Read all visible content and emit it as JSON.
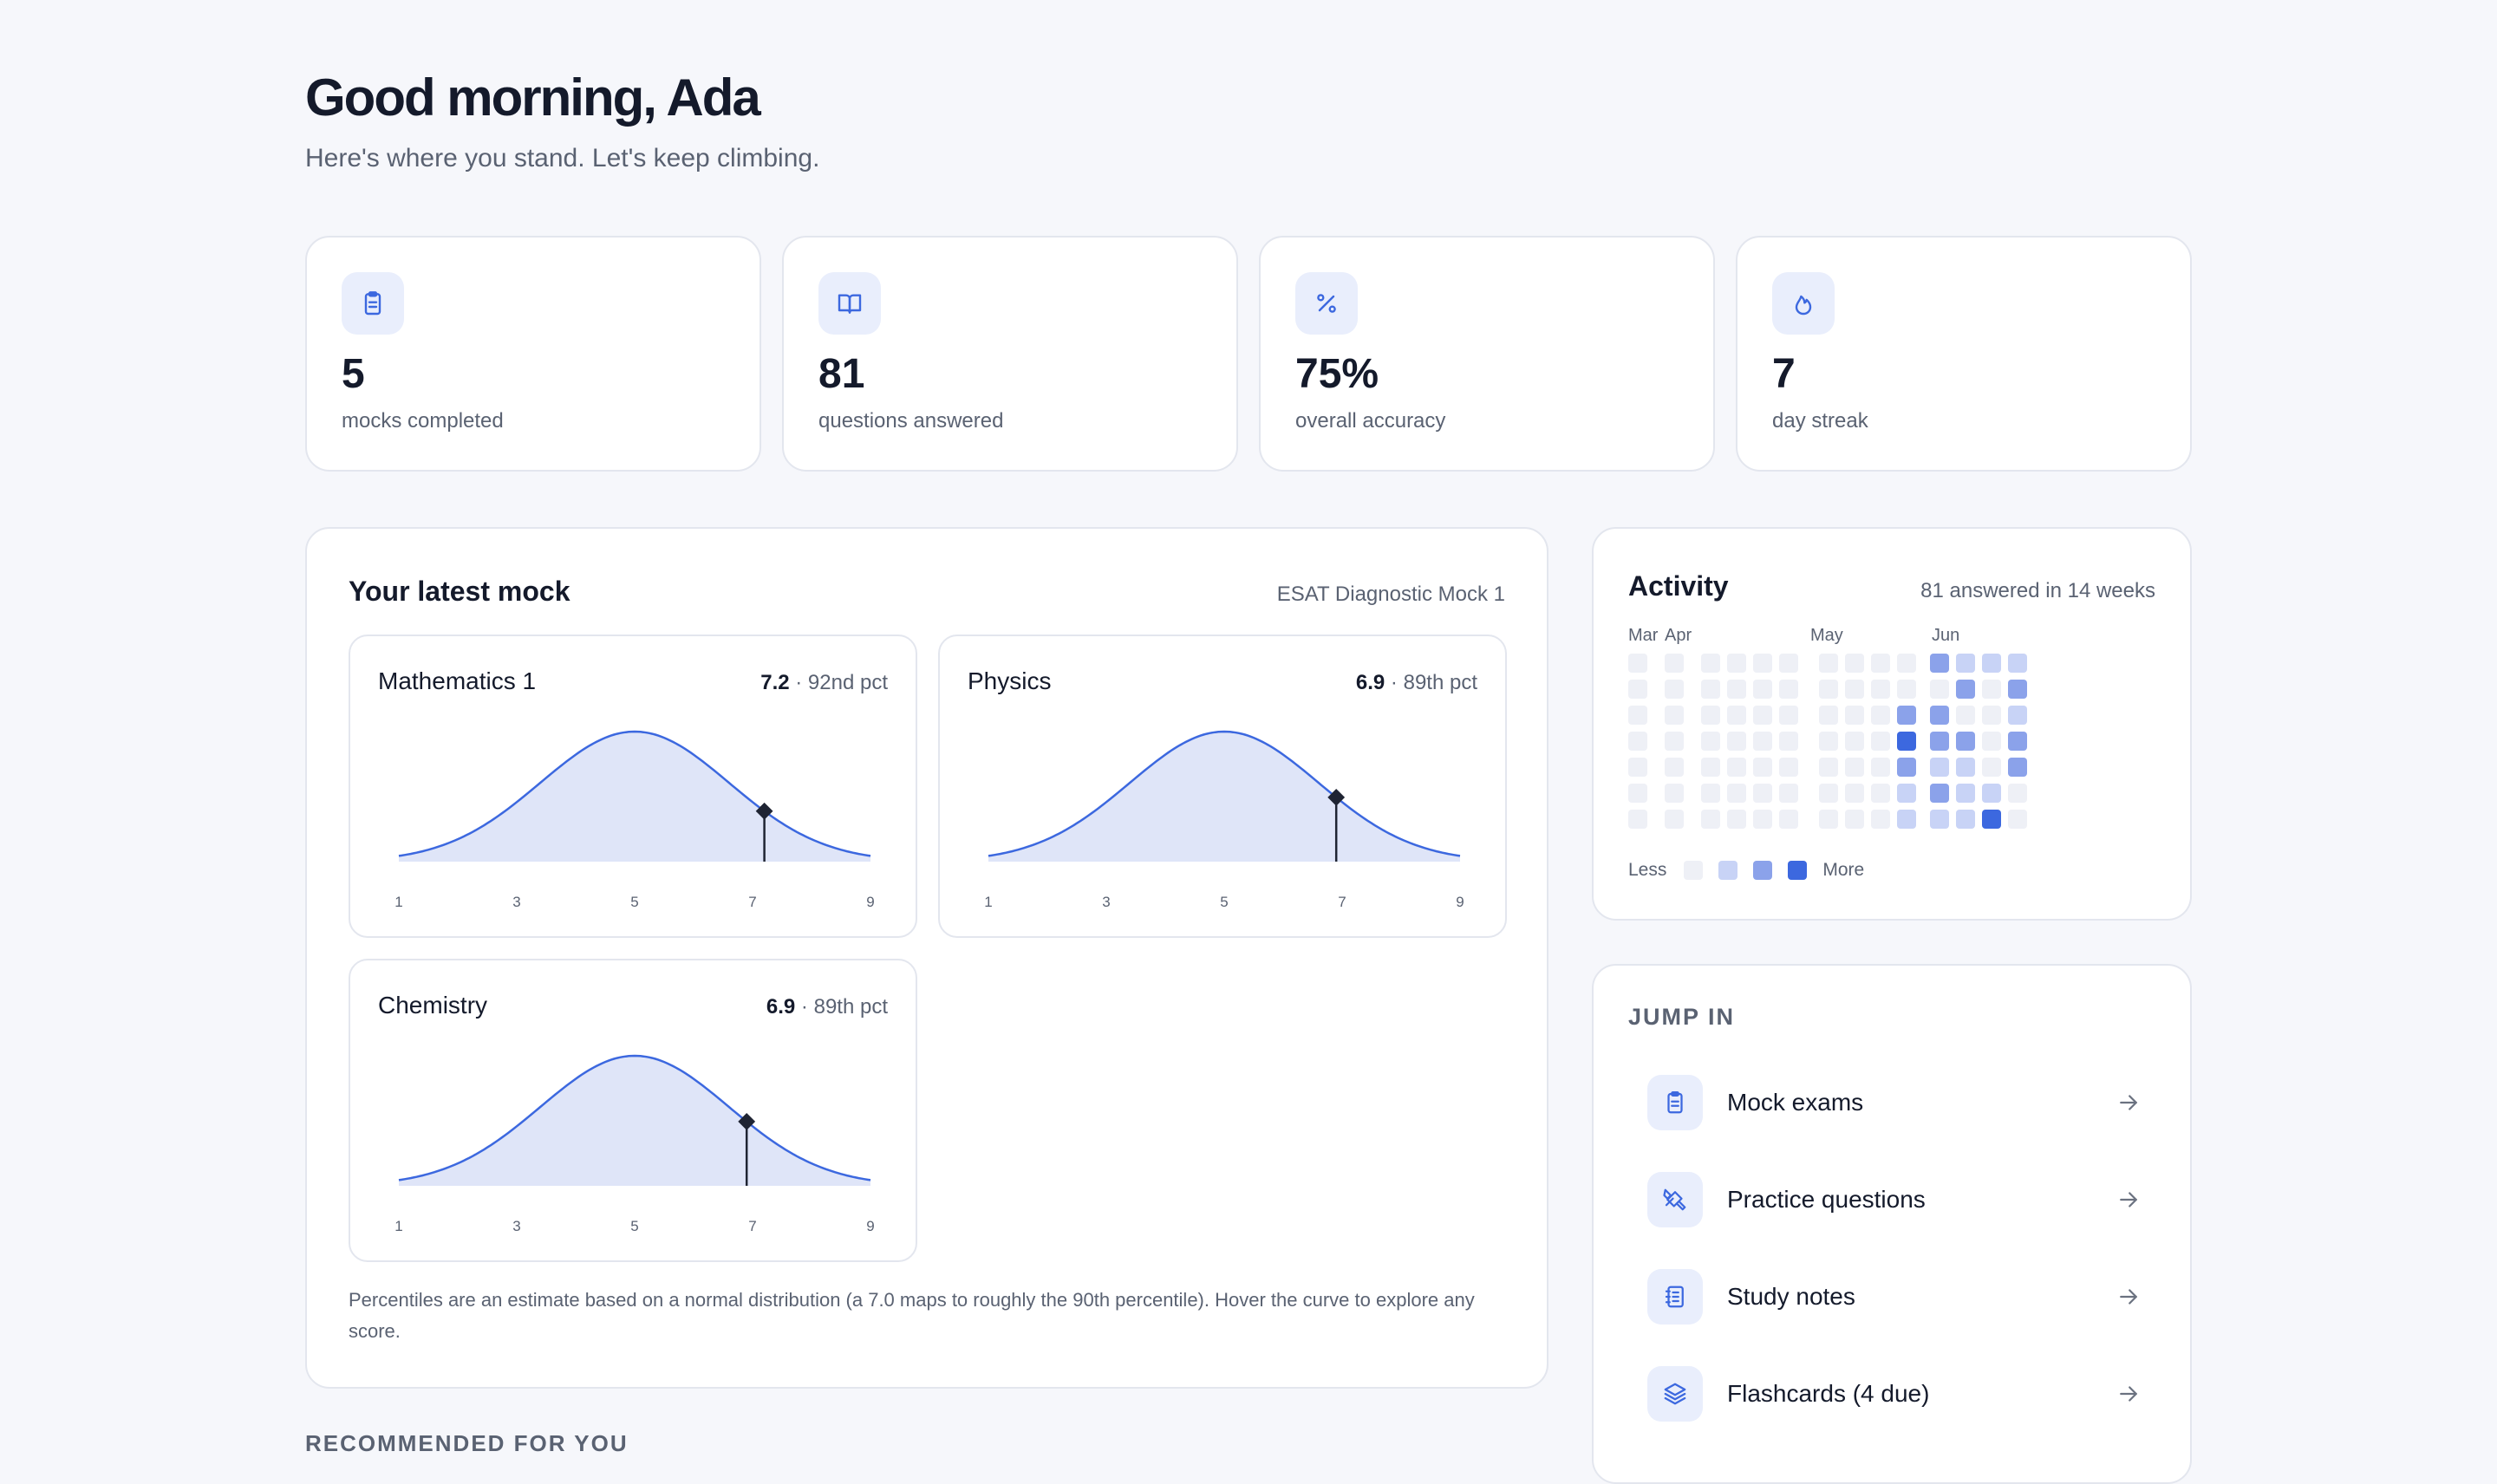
{
  "greeting": "Good morning, Ada",
  "subtitle": "Here's where you stand. Let's keep climbing.",
  "stats": [
    {
      "icon": "clipboard-icon",
      "value": "5",
      "label": "mocks completed"
    },
    {
      "icon": "book-open-icon",
      "value": "81",
      "label": "questions answered"
    },
    {
      "icon": "percent-icon",
      "value": "75%",
      "label": "overall accuracy"
    },
    {
      "icon": "flame-icon",
      "value": "7",
      "label": "day streak"
    }
  ],
  "latest_mock": {
    "title": "Your latest mock",
    "exam_name": "ESAT Diagnostic Mock 1",
    "footnote": "Percentiles are an estimate based on a normal distribution (a 7.0 maps to roughly the 90th percentile). Hover the curve to explore any score.",
    "subjects": [
      {
        "name": "Mathematics 1",
        "score": "7.2",
        "pct": " · 92nd pct"
      },
      {
        "name": "Physics",
        "score": "6.9",
        "pct": " · 89th pct"
      },
      {
        "name": "Chemistry",
        "score": "6.9",
        "pct": " · 89th pct"
      }
    ]
  },
  "chart_data": [
    {
      "type": "area",
      "title": "Mathematics 1",
      "x_ticks": [
        1,
        3,
        5,
        7,
        9
      ],
      "xlim": [
        1,
        9
      ],
      "distribution": {
        "kind": "normal",
        "mean": 5.0,
        "sd": 1.6
      },
      "marker": {
        "x": 7.2
      }
    },
    {
      "type": "area",
      "title": "Physics",
      "x_ticks": [
        1,
        3,
        5,
        7,
        9
      ],
      "xlim": [
        1,
        9
      ],
      "distribution": {
        "kind": "normal",
        "mean": 5.0,
        "sd": 1.6
      },
      "marker": {
        "x": 6.9
      }
    },
    {
      "type": "area",
      "title": "Chemistry",
      "x_ticks": [
        1,
        3,
        5,
        7,
        9
      ],
      "xlim": [
        1,
        9
      ],
      "distribution": {
        "kind": "normal",
        "mean": 5.0,
        "sd": 1.6
      },
      "marker": {
        "x": 6.9
      }
    }
  ],
  "activity": {
    "title": "Activity",
    "meta": "81 answered in 14 weeks",
    "months": [
      "Mar",
      "Apr",
      "May",
      "Jun"
    ],
    "legend_less": "Less",
    "legend_more": "More",
    "levels": [
      "#eef0f6",
      "#c8d3f6",
      "#8ba2ea",
      "#3c68df"
    ],
    "weeks": [
      [
        0,
        0,
        0,
        0,
        0,
        0,
        0
      ],
      [
        0,
        0,
        0,
        0,
        0,
        0,
        0
      ],
      [
        0,
        0,
        0,
        0,
        0,
        0,
        0
      ],
      [
        0,
        0,
        0,
        0,
        0,
        0,
        0
      ],
      [
        0,
        0,
        0,
        0,
        0,
        0,
        0
      ],
      [
        0,
        0,
        0,
        0,
        0,
        0,
        0
      ],
      [
        0,
        0,
        0,
        0,
        0,
        0,
        0
      ],
      [
        0,
        0,
        0,
        0,
        0,
        0,
        0
      ],
      [
        0,
        0,
        0,
        0,
        0,
        0,
        0
      ],
      [
        0,
        0,
        2,
        3,
        2,
        1,
        1
      ],
      [
        2,
        0,
        2,
        2,
        1,
        2,
        1
      ],
      [
        1,
        2,
        0,
        2,
        1,
        1,
        1
      ],
      [
        1,
        0,
        0,
        0,
        0,
        1,
        3
      ],
      [
        1,
        2,
        1,
        2,
        2,
        0,
        0
      ]
    ]
  },
  "jump_in": {
    "title": "JUMP IN",
    "items": [
      {
        "icon": "clipboard-icon",
        "label": "Mock exams"
      },
      {
        "icon": "tools-icon",
        "label": "Practice questions"
      },
      {
        "icon": "notebook-icon",
        "label": "Study notes"
      },
      {
        "icon": "layers-icon",
        "label": "Flashcards (4 due)"
      }
    ]
  },
  "recommended_title": "RECOMMENDED FOR YOU",
  "colors": {
    "accent": "#3c68df",
    "curve_fill": "#dfe5f8",
    "icon_bg": "#e9eefc"
  }
}
